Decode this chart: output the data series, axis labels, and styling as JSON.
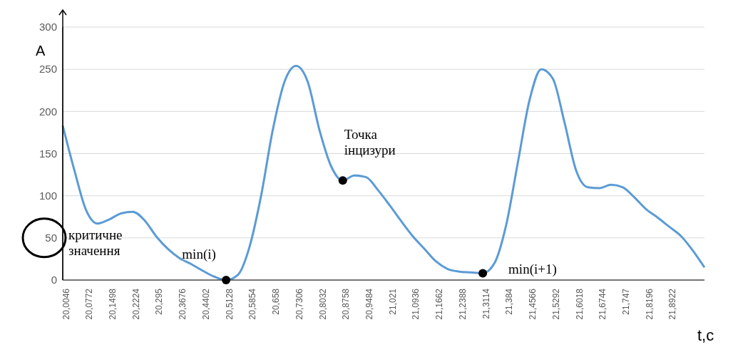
{
  "chart_data": {
    "type": "line",
    "xlabel": "t,c",
    "ylabel": "A",
    "categories": [
      "20,0046",
      null,
      "20,0772",
      null,
      "20,1498",
      null,
      "20,2224",
      null,
      "20,295",
      null,
      "20,3676",
      null,
      "20,4402",
      null,
      "20,5128",
      null,
      "20,5854",
      null,
      "20,658",
      null,
      "20,7306",
      null,
      "20,8032",
      null,
      "20,8758",
      null,
      "20,9484",
      null,
      "21,021",
      null,
      "21,0936",
      null,
      "21,1662",
      null,
      "21,2388",
      null,
      "21,3114",
      null,
      "21,384",
      null,
      "21,4566",
      null,
      "21,5292",
      null,
      "21,6018",
      null,
      "21,6744",
      null,
      "21,747",
      null,
      "21,8196",
      null,
      "21,8922",
      null,
      null,
      null
    ],
    "series": [
      {
        "color": "#5b9bd5",
        "values": [
          183,
          130,
          83,
          67,
          72,
          79,
          81,
          71,
          52,
          37,
          26,
          19,
          11,
          4,
          0,
          6,
          39,
          100,
          178,
          235,
          254,
          235,
          178,
          135,
          118,
          124,
          122,
          107,
          89,
          70,
          52,
          37,
          22,
          13,
          10,
          9,
          8,
          20,
          65,
          139,
          213,
          250,
          239,
          187,
          130,
          110,
          109,
          113,
          110,
          98,
          84,
          74,
          63,
          52,
          35,
          15
        ]
      }
    ],
    "ylim": [
      0,
      300
    ],
    "yticks": [
      0,
      50,
      100,
      150,
      200,
      250,
      300
    ],
    "grid": "y",
    "marker": "none",
    "line_style": "solid",
    "annotations": [
      "критичне значення",
      {
        "text": "min(i)",
        "x": "20,5128",
        "y": 0
      },
      {
        "text": "Точка інцизури",
        "x": "20,8758",
        "y": 118
      },
      {
        "text": "min(i+1)",
        "x": "21,3114",
        "y": 8
      }
    ]
  }
}
